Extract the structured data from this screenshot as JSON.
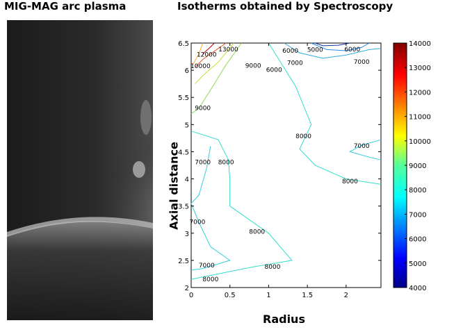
{
  "titles": {
    "left": "MIG-MAG arc plasma",
    "right": "Isotherms obtained by Spectroscopy"
  },
  "photo": {
    "icon": "arc-plasma-photo"
  },
  "chart_data": {
    "type": "contour",
    "xlabel": "Radius",
    "ylabel": "Axial distance",
    "xlim": [
      0,
      2.45
    ],
    "ylim": [
      2,
      6.5
    ],
    "xticks": [
      "0",
      "0.5",
      "1",
      "1.5",
      "2"
    ],
    "xtick_values": [
      0,
      0.5,
      1,
      1.5,
      2
    ],
    "yticks": [
      "2",
      "2.5",
      "3",
      "3.5",
      "4",
      "4.5",
      "5",
      "5.5",
      "6",
      "6.5"
    ],
    "ytick_values": [
      2,
      2.5,
      3,
      3.5,
      4,
      4.5,
      5,
      5.5,
      6,
      6.5
    ],
    "colorbar": {
      "min": 4000,
      "max": 14000,
      "ticks": [
        "14000",
        "13000",
        "12000",
        "11000",
        "10000",
        "9000",
        "8000",
        "7000",
        "6000",
        "5000",
        "4000"
      ],
      "tick_values": [
        14000,
        13000,
        12000,
        11000,
        10000,
        9000,
        8000,
        7000,
        6000,
        5000,
        4000
      ]
    },
    "contours": [
      {
        "level": 8000,
        "color": "#33ddcc",
        "points": [
          [
            0,
            4.88
          ],
          [
            0.35,
            4.72
          ],
          [
            0.48,
            4.35
          ],
          [
            0.5,
            4.0
          ],
          [
            0.5,
            3.5
          ],
          [
            1.0,
            3.0
          ],
          [
            1.3,
            2.5
          ],
          [
            0.8,
            2.38
          ],
          [
            0.1,
            2.18
          ],
          [
            0,
            2.15
          ]
        ]
      },
      {
        "level": 7000,
        "color": "#33ccdd",
        "points": [
          [
            0.25,
            4.6
          ],
          [
            0.2,
            4.2
          ],
          [
            0.1,
            3.7
          ],
          [
            0,
            3.55
          ],
          [
            0.1,
            3.2
          ],
          [
            0.25,
            2.75
          ],
          [
            0.5,
            2.5
          ],
          [
            0.15,
            2.35
          ],
          [
            0,
            2.32
          ]
        ]
      },
      {
        "level": 8000,
        "color": "#33ddcc",
        "points": [
          [
            1.0,
            6.5
          ],
          [
            1.35,
            5.7
          ],
          [
            1.55,
            5.0
          ],
          [
            1.4,
            4.55
          ],
          [
            1.6,
            4.25
          ],
          [
            2.0,
            4.0
          ],
          [
            2.45,
            3.9
          ]
        ]
      },
      {
        "level": 7000,
        "color": "#33ccdd",
        "points": [
          [
            2.45,
            4.72
          ],
          [
            2.2,
            4.62
          ],
          [
            2.05,
            4.5
          ],
          [
            2.3,
            4.4
          ],
          [
            2.45,
            4.35
          ]
        ]
      },
      {
        "level": 7000,
        "color": "#33aadd",
        "points": [
          [
            1.2,
            6.5
          ],
          [
            1.4,
            6.32
          ],
          [
            1.7,
            6.22
          ],
          [
            2.0,
            6.28
          ],
          [
            2.3,
            6.38
          ],
          [
            2.45,
            6.4
          ]
        ]
      },
      {
        "level": 6000,
        "color": "#2288ee",
        "points": [
          [
            1.55,
            6.5
          ],
          [
            1.75,
            6.38
          ],
          [
            2.0,
            6.36
          ],
          [
            2.2,
            6.42
          ],
          [
            2.3,
            6.5
          ]
        ]
      },
      {
        "level": 5000,
        "color": "#1133aa",
        "points": [
          [
            1.6,
            6.5
          ],
          [
            1.7,
            6.45
          ],
          [
            1.9,
            6.46
          ],
          [
            2.05,
            6.5
          ]
        ]
      },
      {
        "level": 9000,
        "color": "#88dd55",
        "points": [
          [
            0.65,
            6.5
          ],
          [
            0.45,
            6.1
          ],
          [
            0.3,
            5.75
          ],
          [
            0.1,
            5.3
          ],
          [
            0,
            5.2
          ]
        ]
      },
      {
        "level": 10000,
        "color": "#ccdd33",
        "points": [
          [
            0.55,
            6.5
          ],
          [
            0.35,
            6.15
          ],
          [
            0.15,
            5.9
          ],
          [
            0.05,
            5.75
          ]
        ]
      },
      {
        "level": 12000,
        "color": "#ffaa22",
        "points": [
          [
            0.15,
            6.5
          ],
          [
            0.1,
            6.3
          ],
          [
            0.02,
            6.1
          ]
        ]
      },
      {
        "level": 13000,
        "color": "#ee5522",
        "points": [
          [
            0.45,
            6.5
          ],
          [
            0.3,
            6.35
          ],
          [
            0.15,
            6.2
          ],
          [
            0.05,
            6.05
          ]
        ]
      },
      {
        "level": 14000,
        "color": "#bb0000",
        "points": [
          [
            0.3,
            6.5
          ],
          [
            0.25,
            6.43
          ],
          [
            0.15,
            6.3
          ]
        ]
      }
    ],
    "contour_labels": [
      {
        "text": "13000",
        "x": 0.48,
        "y": 6.38
      },
      {
        "text": "12000",
        "x": 0.2,
        "y": 6.28
      },
      {
        "text": "10000",
        "x": 0.12,
        "y": 6.07
      },
      {
        "text": "9000",
        "x": 0.8,
        "y": 6.08
      },
      {
        "text": "6000",
        "x": 1.07,
        "y": 6.0
      },
      {
        "text": "6000",
        "x": 1.28,
        "y": 6.35
      },
      {
        "text": "5000",
        "x": 1.6,
        "y": 6.37
      },
      {
        "text": "6000",
        "x": 2.08,
        "y": 6.38
      },
      {
        "text": "7000",
        "x": 1.34,
        "y": 6.13
      },
      {
        "text": "7000",
        "x": 2.2,
        "y": 6.15
      },
      {
        "text": "9000",
        "x": 0.15,
        "y": 5.3
      },
      {
        "text": "8000",
        "x": 1.45,
        "y": 4.78
      },
      {
        "text": "7000",
        "x": 2.2,
        "y": 4.6
      },
      {
        "text": "7000",
        "x": 0.15,
        "y": 4.3
      },
      {
        "text": "8000",
        "x": 0.45,
        "y": 4.3
      },
      {
        "text": "8000",
        "x": 2.05,
        "y": 3.95
      },
      {
        "text": "7000",
        "x": 0.08,
        "y": 3.2
      },
      {
        "text": "8000",
        "x": 0.85,
        "y": 3.02
      },
      {
        "text": "7000",
        "x": 0.2,
        "y": 2.4
      },
      {
        "text": "8000",
        "x": 1.05,
        "y": 2.38
      },
      {
        "text": "8000",
        "x": 0.25,
        "y": 2.15
      }
    ]
  }
}
